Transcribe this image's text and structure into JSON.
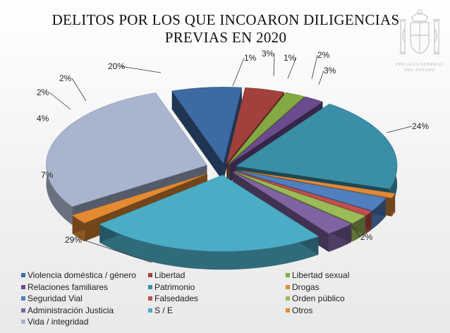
{
  "title_line1": "DELITOS POR LOS QUE INCOARON DILIGENCIAS",
  "title_line2": "PREVIAS EN 2020",
  "emblem": {
    "text1": "FISCALÍA GENERAL",
    "text2": "DEL ESTADO"
  },
  "chart_data": {
    "type": "pie",
    "title": "DELITOS POR LOS QUE INCOARON DILIGENCIAS PREVIAS EN 2020",
    "legend_position": "bottom",
    "slices": [
      {
        "name": "Vida / integridad",
        "value": 29,
        "label": "29%",
        "color": "#a9b4cf"
      },
      {
        "name": "Violencia doméstica / género",
        "value": 7,
        "label": "7%",
        "color": "#3d6aa3"
      },
      {
        "name": "Libertad",
        "value": 4,
        "label": "4%",
        "color": "#a2403c"
      },
      {
        "name": "Libertad sexual",
        "value": 2,
        "label": "2%",
        "color": "#84a843"
      },
      {
        "name": "Relaciones familiares",
        "value": 2,
        "label": "2%",
        "color": "#6a4c8e"
      },
      {
        "name": "Patrimonio",
        "value": 20,
        "label": "20%",
        "color": "#3a8fa6"
      },
      {
        "name": "Drogas",
        "value": 1,
        "label": "1%",
        "color": "#e0893a"
      },
      {
        "name": "Seguridad Vial",
        "value": 3,
        "label": "3%",
        "color": "#4f7fbf"
      },
      {
        "name": "Falsedades",
        "value": 1,
        "label": "1%",
        "color": "#c0504d"
      },
      {
        "name": "Orden público",
        "value": 2,
        "label": "2%",
        "color": "#9bbb59"
      },
      {
        "name": "Administración Justicia",
        "value": 3,
        "label": "3%",
        "color": "#8064a2"
      },
      {
        "name": "S / E",
        "value": 24,
        "label": "24%",
        "color": "#4bacc6"
      },
      {
        "name": "Otros",
        "value": 2,
        "label": "2%",
        "color": "#e38a33"
      }
    ],
    "legend": [
      {
        "name": "Violencia doméstica / género",
        "color": "#3d6aa3"
      },
      {
        "name": "Libertad",
        "color": "#a2403c"
      },
      {
        "name": "Libertad sexual",
        "color": "#84a843"
      },
      {
        "name": "Relaciones familiares",
        "color": "#6a4c8e"
      },
      {
        "name": "Patrimonio",
        "color": "#3a8fa6"
      },
      {
        "name": "Drogas",
        "color": "#e0893a"
      },
      {
        "name": "Seguridad Vial",
        "color": "#4f7fbf"
      },
      {
        "name": "Falsedades",
        "color": "#c0504d"
      },
      {
        "name": "Orden público",
        "color": "#9bbb59"
      },
      {
        "name": "Administración Justicia",
        "color": "#8064a2"
      },
      {
        "name": "S / E",
        "color": "#4bacc6"
      },
      {
        "name": "Otros",
        "color": "#e38a33"
      },
      {
        "name": "Vida / integridad",
        "color": "#a9b4cf"
      }
    ]
  }
}
